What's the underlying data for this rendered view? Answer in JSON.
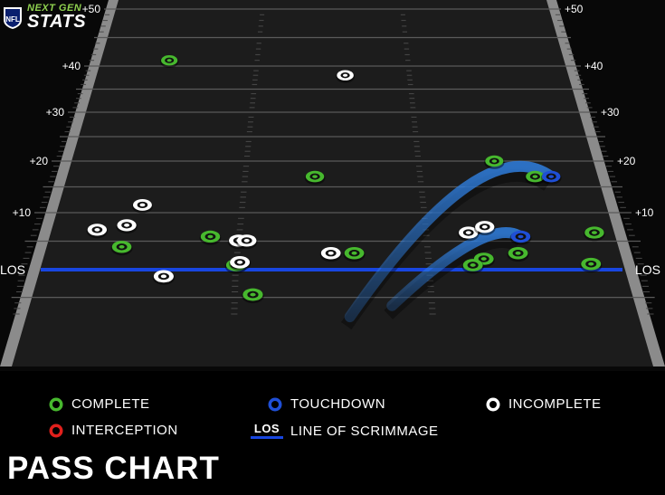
{
  "header": {
    "brand_small": "NEXT GEN",
    "brand_large": "STATS"
  },
  "title": "PASS CHART",
  "legend": {
    "complete": "COMPLETE",
    "touchdown": "TOUCHDOWN",
    "incomplete": "INCOMPLETE",
    "interception": "INTERCEPTION",
    "los_abbr": "LOS",
    "los": "LINE OF SCRIMMAGE"
  },
  "colors": {
    "complete": "#47b82e",
    "touchdown": "#1f4fd6",
    "incomplete": "#ffffff",
    "interception": "#e0201c",
    "los_line": "#1846e0",
    "trajectory": "#2f7fe0",
    "field": "#1c1c1c"
  },
  "chart_data": {
    "type": "scatter",
    "title": "PASS CHART",
    "xlabel": "",
    "ylabel": "",
    "x_axis": "lateral position, 0 = left sideline, 53.3 = right sideline (yards)",
    "y_axis": "yards downfield from LOS",
    "ylim": [
      -8,
      50
    ],
    "y_ticks": [
      10,
      20,
      30,
      40,
      50
    ],
    "y_tick_labels": [
      "+10",
      "+20",
      "+30",
      "+40",
      "+50"
    ],
    "los_label": "LOS",
    "series": [
      {
        "name": "COMPLETE",
        "points": [
          [
            9.0,
            41.0
          ],
          [
            25.0,
            17.0
          ],
          [
            16.0,
            5.8
          ],
          [
            8.5,
            4.0
          ],
          [
            18.5,
            0.8
          ],
          [
            28.5,
            2.9
          ],
          [
            20.0,
            -4.5
          ],
          [
            42.0,
            20.0
          ],
          [
            45.5,
            17.0
          ],
          [
            49.5,
            6.5
          ],
          [
            42.5,
            2.9
          ],
          [
            39.5,
            1.9
          ],
          [
            38.5,
            0.8
          ],
          [
            48.5,
            1.0
          ]
        ]
      },
      {
        "name": "TOUCHDOWN",
        "points": [
          [
            47.0,
            17.0
          ],
          [
            43.0,
            5.8
          ]
        ]
      },
      {
        "name": "INCOMPLETE",
        "points": [
          [
            28.0,
            38.0
          ],
          [
            9.5,
            11.5
          ],
          [
            6.0,
            7.0
          ],
          [
            8.5,
            7.8
          ],
          [
            18.5,
            5.1
          ],
          [
            19.2,
            5.1
          ],
          [
            26.5,
            2.9
          ],
          [
            18.8,
            1.3
          ],
          [
            12.5,
            -1.2
          ],
          [
            38.5,
            6.5
          ],
          [
            40.0,
            7.5
          ]
        ]
      },
      {
        "name": "INTERCEPTION",
        "points": []
      }
    ],
    "touchdown_paths": [
      {
        "from": [
          28.0,
          -8.5
        ],
        "to": [
          47.0,
          17.0
        ],
        "peak": 21.0
      },
      {
        "from": [
          31.5,
          -6.5
        ],
        "to": [
          43.0,
          5.8
        ],
        "peak": 9.0
      }
    ]
  }
}
